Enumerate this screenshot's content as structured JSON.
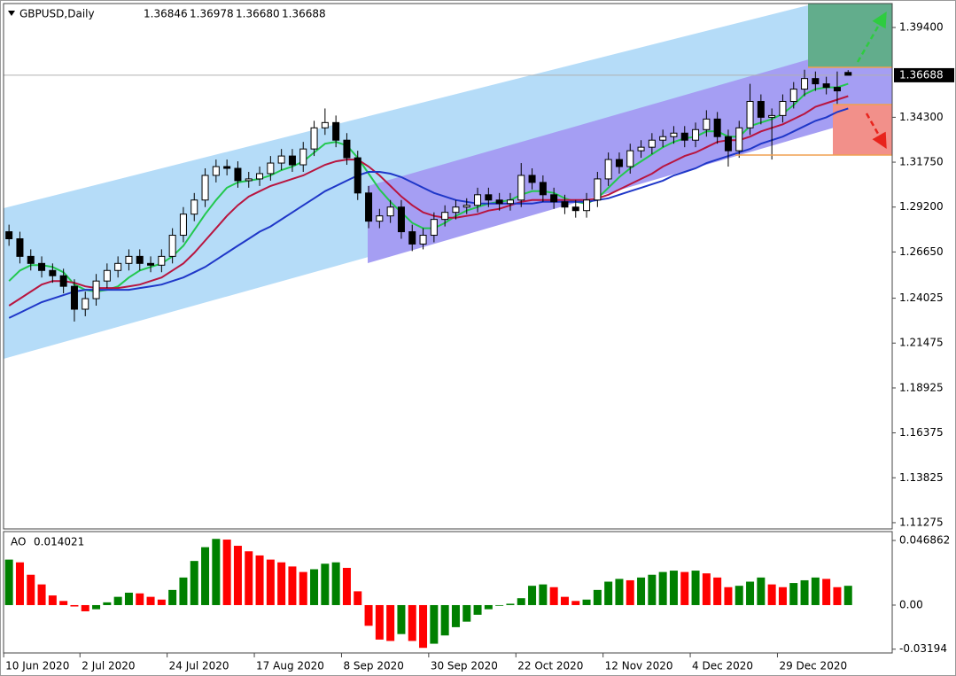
{
  "chart_data": [
    {
      "type": "candlestick",
      "title": "GBPUSD,Daily",
      "header_values": [
        "1.36846",
        "1.36978",
        "1.36680",
        "1.36688"
      ],
      "categories": [
        "10 Jun 2020",
        null,
        null,
        null,
        null,
        null,
        null,
        "2 Jul 2020",
        null,
        null,
        null,
        null,
        null,
        null,
        null,
        "24 Jul 2020",
        null,
        null,
        null,
        null,
        null,
        null,
        null,
        "17 Aug 2020",
        null,
        null,
        null,
        null,
        null,
        null,
        null,
        "8 Sep 2020",
        null,
        null,
        null,
        null,
        null,
        null,
        null,
        "30 Sep 2020",
        null,
        null,
        null,
        null,
        null,
        null,
        null,
        "22 Oct 2020",
        null,
        null,
        null,
        null,
        null,
        null,
        null,
        "12 Nov 2020",
        null,
        null,
        null,
        null,
        null,
        null,
        null,
        "4 Dec 2020",
        null,
        null,
        null,
        null,
        null,
        null,
        null,
        "29 Dec 2020",
        null,
        null,
        null,
        null,
        null,
        null
      ],
      "open": [
        1.278,
        1.274,
        1.264,
        1.26,
        1.256,
        1.253,
        1.247,
        1.234,
        1.24,
        1.25,
        1.256,
        1.26,
        1.264,
        1.26,
        1.259,
        1.264,
        1.276,
        1.288,
        1.296,
        1.31,
        1.315,
        1.314,
        1.307,
        1.308,
        1.311,
        1.317,
        1.321,
        1.316,
        1.325,
        1.337,
        1.34,
        1.33,
        1.32,
        1.3,
        1.284,
        1.287,
        1.292,
        1.278,
        1.271,
        1.276,
        1.285,
        1.289,
        1.292,
        1.293,
        1.299,
        1.296,
        1.294,
        1.296,
        1.31,
        1.306,
        1.299,
        1.295,
        1.292,
        1.29,
        1.296,
        1.308,
        1.319,
        1.315,
        1.324,
        1.326,
        1.33,
        1.332,
        1.334,
        1.33,
        1.336,
        1.342,
        1.332,
        1.324,
        1.337,
        1.352,
        1.343,
        1.344,
        1.352,
        1.359,
        1.365,
        1.362,
        1.36,
        1.36846
      ],
      "high": [
        1.282,
        1.278,
        1.268,
        1.264,
        1.26,
        1.257,
        1.251,
        1.244,
        1.254,
        1.26,
        1.264,
        1.268,
        1.268,
        1.264,
        1.268,
        1.28,
        1.292,
        1.3,
        1.314,
        1.319,
        1.319,
        1.318,
        1.312,
        1.315,
        1.321,
        1.325,
        1.325,
        1.329,
        1.341,
        1.348,
        1.344,
        1.334,
        1.324,
        1.304,
        1.291,
        1.296,
        1.296,
        1.282,
        1.28,
        1.289,
        1.293,
        1.296,
        1.297,
        1.303,
        1.303,
        1.3,
        1.3,
        1.317,
        1.314,
        1.31,
        1.303,
        1.299,
        1.296,
        1.3,
        1.312,
        1.323,
        1.323,
        1.328,
        1.33,
        1.334,
        1.336,
        1.338,
        1.338,
        1.34,
        1.347,
        1.346,
        1.336,
        1.341,
        1.362,
        1.356,
        1.348,
        1.356,
        1.363,
        1.37,
        1.369,
        1.366,
        1.369,
        1.36978
      ],
      "low": [
        1.27,
        1.26,
        1.256,
        1.252,
        1.249,
        1.243,
        1.227,
        1.23,
        1.236,
        1.246,
        1.252,
        1.256,
        1.256,
        1.255,
        1.255,
        1.26,
        1.272,
        1.284,
        1.292,
        1.306,
        1.31,
        1.303,
        1.303,
        1.304,
        1.307,
        1.313,
        1.312,
        1.312,
        1.321,
        1.333,
        1.326,
        1.316,
        1.296,
        1.28,
        1.28,
        1.283,
        1.274,
        1.267,
        1.268,
        1.272,
        1.281,
        1.285,
        1.288,
        1.289,
        1.292,
        1.29,
        1.29,
        1.292,
        1.302,
        1.295,
        1.291,
        1.288,
        1.286,
        1.286,
        1.292,
        1.304,
        1.311,
        1.311,
        1.32,
        1.322,
        1.326,
        1.328,
        1.326,
        1.326,
        1.332,
        1.328,
        1.315,
        1.32,
        1.333,
        1.339,
        1.319,
        1.34,
        1.348,
        1.355,
        1.358,
        1.356,
        1.35,
        1.3668
      ],
      "close": [
        1.274,
        1.264,
        1.26,
        1.256,
        1.253,
        1.247,
        1.234,
        1.24,
        1.25,
        1.256,
        1.26,
        1.264,
        1.26,
        1.259,
        1.264,
        1.276,
        1.288,
        1.296,
        1.31,
        1.315,
        1.314,
        1.307,
        1.308,
        1.311,
        1.317,
        1.321,
        1.316,
        1.325,
        1.337,
        1.34,
        1.33,
        1.32,
        1.3,
        1.284,
        1.287,
        1.292,
        1.278,
        1.271,
        1.276,
        1.285,
        1.289,
        1.292,
        1.293,
        1.299,
        1.296,
        1.294,
        1.296,
        1.31,
        1.306,
        1.299,
        1.295,
        1.292,
        1.29,
        1.296,
        1.308,
        1.319,
        1.315,
        1.324,
        1.326,
        1.33,
        1.332,
        1.334,
        1.33,
        1.336,
        1.342,
        1.332,
        1.324,
        1.337,
        1.352,
        1.343,
        1.344,
        1.352,
        1.359,
        1.365,
        1.362,
        1.36,
        1.358,
        1.36688
      ],
      "up_color": "#ffffff",
      "down_color": "#000000",
      "series": [
        {
          "color": "#22c84e",
          "values": [
            1.25,
            1.256,
            1.259,
            1.259,
            1.258,
            1.255,
            1.248,
            1.245,
            1.244,
            1.245,
            1.247,
            1.252,
            1.256,
            1.258,
            1.26,
            1.264,
            1.27,
            1.279,
            1.288,
            1.296,
            1.303,
            1.306,
            1.307,
            1.308,
            1.31,
            1.313,
            1.315,
            1.318,
            1.323,
            1.328,
            1.329,
            1.327,
            1.32,
            1.311,
            1.302,
            1.295,
            1.289,
            1.283,
            1.28,
            1.28,
            1.283,
            1.287,
            1.29,
            1.292,
            1.294,
            1.295,
            1.296,
            1.299,
            1.301,
            1.301,
            1.3,
            1.297,
            1.295,
            1.294,
            1.297,
            1.303,
            1.309,
            1.314,
            1.318,
            1.322,
            1.326,
            1.329,
            1.331,
            1.332,
            1.335,
            1.335,
            1.332,
            1.332,
            1.338,
            1.34,
            1.342,
            1.345,
            1.35,
            1.356,
            1.359,
            1.36,
            1.36,
            1.362
          ]
        },
        {
          "color": "#b8153f",
          "values": [
            1.236,
            1.24,
            1.244,
            1.248,
            1.25,
            1.25,
            1.249,
            1.247,
            1.246,
            1.246,
            1.246,
            1.247,
            1.248,
            1.25,
            1.252,
            1.256,
            1.26,
            1.266,
            1.273,
            1.28,
            1.287,
            1.293,
            1.298,
            1.301,
            1.304,
            1.306,
            1.308,
            1.31,
            1.313,
            1.316,
            1.318,
            1.319,
            1.319,
            1.315,
            1.31,
            1.304,
            1.298,
            1.293,
            1.289,
            1.287,
            1.286,
            1.286,
            1.287,
            1.288,
            1.29,
            1.291,
            1.293,
            1.295,
            1.296,
            1.296,
            1.296,
            1.296,
            1.296,
            1.296,
            1.297,
            1.299,
            1.302,
            1.305,
            1.308,
            1.311,
            1.315,
            1.318,
            1.321,
            1.323,
            1.326,
            1.329,
            1.33,
            1.33,
            1.332,
            1.335,
            1.337,
            1.339,
            1.342,
            1.345,
            1.349,
            1.351,
            1.353,
            1.355
          ]
        },
        {
          "color": "#1f37c8",
          "values": [
            1.229,
            1.232,
            1.235,
            1.238,
            1.24,
            1.242,
            1.244,
            1.245,
            1.245,
            1.245,
            1.245,
            1.245,
            1.246,
            1.247,
            1.248,
            1.25,
            1.252,
            1.255,
            1.258,
            1.262,
            1.266,
            1.27,
            1.274,
            1.278,
            1.281,
            1.285,
            1.289,
            1.293,
            1.297,
            1.301,
            1.304,
            1.307,
            1.31,
            1.312,
            1.312,
            1.311,
            1.309,
            1.306,
            1.303,
            1.3,
            1.298,
            1.296,
            1.295,
            1.294,
            1.294,
            1.294,
            1.294,
            1.294,
            1.294,
            1.295,
            1.295,
            1.295,
            1.295,
            1.295,
            1.296,
            1.297,
            1.299,
            1.301,
            1.303,
            1.305,
            1.307,
            1.31,
            1.312,
            1.314,
            1.317,
            1.319,
            1.321,
            1.323,
            1.325,
            1.328,
            1.33,
            1.332,
            1.335,
            1.338,
            1.341,
            1.343,
            1.346,
            1.348
          ]
        }
      ],
      "ylim": [
        1.1092,
        1.4076
      ],
      "yticks": [
        {
          "value": 1.394,
          "label": "1.39400"
        },
        {
          "value": 1.343,
          "label": "1.34300"
        },
        {
          "value": 1.3175,
          "label": "1.31750"
        },
        {
          "value": 1.292,
          "label": "1.29200"
        },
        {
          "value": 1.2665,
          "label": "1.26650"
        },
        {
          "value": 1.24025,
          "label": "1.24025"
        },
        {
          "value": 1.21475,
          "label": "1.21475"
        },
        {
          "value": 1.18925,
          "label": "1.18925"
        },
        {
          "value": 1.16375,
          "label": "1.16375"
        },
        {
          "value": 1.13825,
          "label": "1.13825"
        },
        {
          "value": 1.11275,
          "label": "1.11275"
        }
      ],
      "current_price": {
        "value": 1.36688,
        "label": "1.36688"
      }
    },
    {
      "type": "bar",
      "title": "AO",
      "current_value": 0.014021,
      "values": [
        0.033,
        0.031,
        0.022,
        0.015,
        0.007,
        0.003,
        -0.001,
        -0.0045,
        -0.003,
        0.002,
        0.006,
        0.009,
        0.0085,
        0.006,
        0.004,
        0.011,
        0.02,
        0.032,
        0.042,
        0.048,
        0.0475,
        0.043,
        0.039,
        0.036,
        0.033,
        0.031,
        0.028,
        0.024,
        0.026,
        0.03,
        0.031,
        0.027,
        0.01,
        -0.015,
        -0.025,
        -0.026,
        -0.021,
        -0.026,
        -0.031,
        -0.028,
        -0.022,
        -0.016,
        -0.012,
        -0.007,
        -0.003,
        -0.0005,
        0.001,
        0.005,
        0.014,
        0.015,
        0.013,
        0.006,
        0.003,
        0.004,
        0.011,
        0.017,
        0.019,
        0.018,
        0.02,
        0.022,
        0.024,
        0.025,
        0.024,
        0.025,
        0.023,
        0.02,
        0.013,
        0.014,
        0.017,
        0.02,
        0.015,
        0.013,
        0.016,
        0.018,
        0.02,
        0.019,
        0.013,
        0.014
      ],
      "up_color": "#008000",
      "down_color": "#ff0000",
      "ylim": [
        -0.0347,
        0.0533
      ],
      "yticks": [
        0.046862,
        {
          "value": 0,
          "label": "0.00"
        },
        -0.03194
      ]
    }
  ]
}
